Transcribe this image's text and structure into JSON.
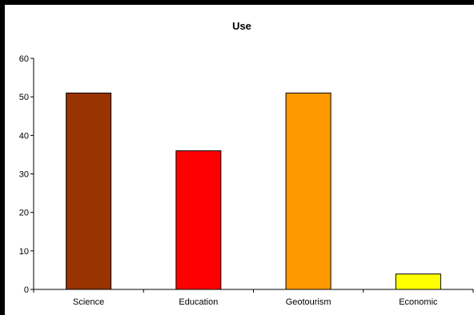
{
  "chart_data": {
    "type": "bar",
    "title": "Use",
    "xlabel": "",
    "ylabel": "",
    "categories": [
      "Science",
      "Education",
      "Geotourism",
      "Economic"
    ],
    "values": [
      51,
      36,
      51,
      4
    ],
    "bar_colors": [
      "#993300",
      "#ff0000",
      "#ff9900",
      "#ffff00"
    ],
    "ylim": [
      0,
      60
    ],
    "yticks": [
      0,
      10,
      20,
      30,
      40,
      50,
      60
    ],
    "grid": false,
    "legend": "none"
  }
}
